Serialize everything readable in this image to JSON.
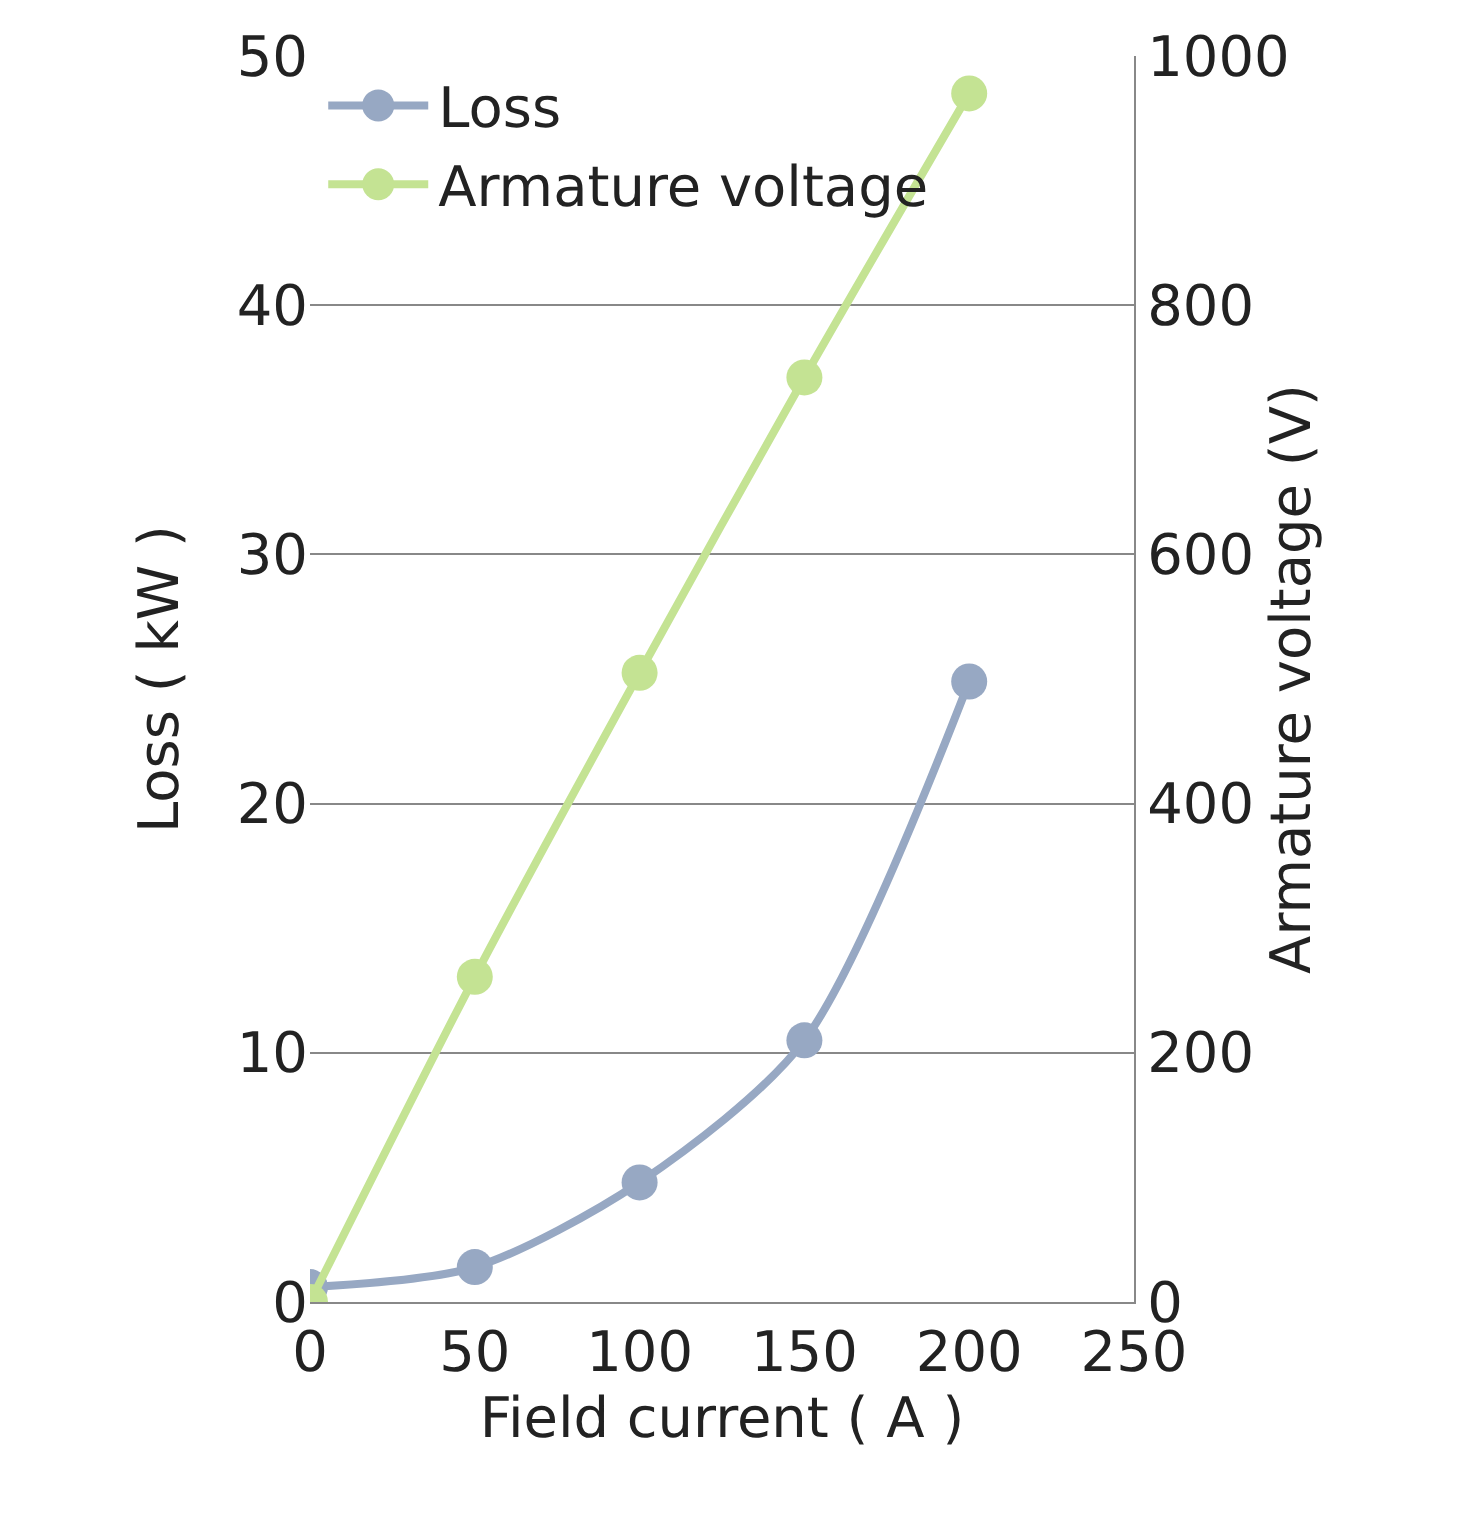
{
  "chart_data": {
    "type": "line",
    "xlabel": "Field current ( A )",
    "ylabel": "Loss ( kW )",
    "y2label": "Armature voltage (V)",
    "x": [
      0,
      50,
      100,
      150,
      200
    ],
    "series": [
      {
        "name": "Loss",
        "color": "#97a8c3",
        "values": [
          0.6,
          1.4,
          4.8,
          10.5,
          24.9
        ]
      },
      {
        "name": "Armature voltage",
        "color": "#c4e393",
        "values": [
          0,
          261,
          505,
          742,
          970
        ],
        "axis": "y2"
      }
    ],
    "xlim": [
      0,
      250
    ],
    "xticks": [
      0,
      50,
      100,
      150,
      200,
      250
    ],
    "ylim": [
      0,
      50
    ],
    "yticks": [
      0,
      10,
      20,
      30,
      40,
      50
    ],
    "y2lim": [
      0,
      1000
    ],
    "y2ticks": [
      0,
      200,
      400,
      600,
      800,
      1000
    ],
    "grid": "y",
    "legend": "top left",
    "marker": "circle",
    "line_style": "solid"
  }
}
